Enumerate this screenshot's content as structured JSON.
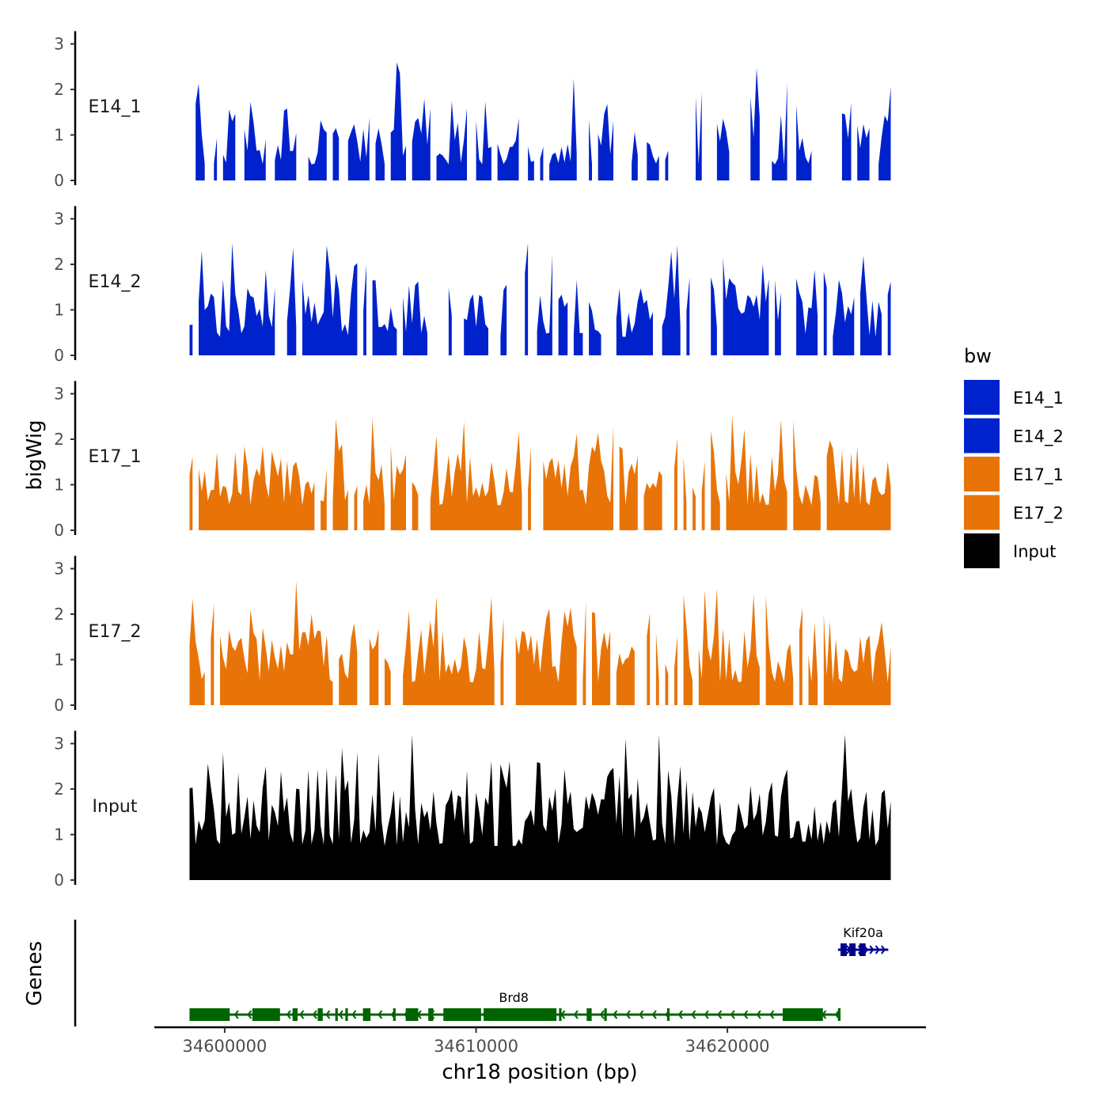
{
  "chart_data": {
    "type": "area",
    "ylabel": "bigWig",
    "genes_label": "Genes",
    "xlabel": "chr18 position (bp)",
    "x_ticks": [
      34600000,
      34610000,
      34620000
    ],
    "x_tick_labels": [
      "34600000",
      "34610000",
      "34620000"
    ],
    "xlim": [
      34597200,
      34627900
    ],
    "data_range": [
      34598600,
      34626500
    ],
    "ylim": [
      0,
      3.35
    ],
    "y_ticks": [
      0,
      1,
      2,
      3
    ],
    "y_tick_labels": [
      "0",
      "1",
      "2",
      "3"
    ],
    "legend": {
      "title": "bw",
      "entries": [
        {
          "label": "E14_1",
          "color": "#0022CC"
        },
        {
          "label": "E14_2",
          "color": "#0022CC"
        },
        {
          "label": "E17_1",
          "color": "#E87408"
        },
        {
          "label": "E17_2",
          "color": "#E87408"
        },
        {
          "label": "Input",
          "color": "#000000"
        }
      ]
    },
    "series": [
      {
        "name": "E14_1",
        "color": "#0022CC",
        "seed": 11,
        "base": 0.35,
        "amp": 1.05,
        "peak_prob": 0.28,
        "peak_height": 0.6,
        "gap_prob": 0.22,
        "floor": 0.0
      },
      {
        "name": "E14_2",
        "color": "#0022CC",
        "seed": 23,
        "base": 0.4,
        "amp": 1.1,
        "peak_prob": 0.3,
        "peak_height": 0.8,
        "gap_prob": 0.2,
        "floor": 0.0
      },
      {
        "name": "E17_1",
        "color": "#E87408",
        "seed": 37,
        "base": 0.55,
        "amp": 1.0,
        "peak_prob": 0.3,
        "peak_height": 0.7,
        "gap_prob": 0.08,
        "floor": 0.0
      },
      {
        "name": "E17_2",
        "color": "#E87408",
        "seed": 51,
        "base": 0.5,
        "amp": 1.05,
        "peak_prob": 0.3,
        "peak_height": 1.0,
        "gap_prob": 0.1,
        "floor": 0.0
      },
      {
        "name": "Input",
        "color": "#000000",
        "seed": 73,
        "base": 0.75,
        "amp": 1.1,
        "peak_prob": 0.3,
        "peak_height": 1.2,
        "gap_prob": 0.0,
        "floor": 0.4
      }
    ],
    "genes": [
      {
        "name": "Brd8",
        "color": "#006400",
        "strand": "-",
        "start": 34598600,
        "end": 34624500,
        "label_at": 34611500,
        "exons": [
          [
            34598600,
            34600200
          ],
          [
            34601100,
            34602200
          ],
          [
            34602700,
            34602900
          ],
          [
            34603700,
            34603900
          ],
          [
            34604400,
            34604500
          ],
          [
            34604800,
            34604900
          ],
          [
            34605500,
            34605800
          ],
          [
            34606700,
            34606800
          ],
          [
            34607200,
            34607700
          ],
          [
            34608100,
            34608300
          ],
          [
            34608700,
            34610200
          ],
          [
            34610300,
            34613200
          ],
          [
            34613300,
            34613400
          ],
          [
            34614400,
            34614600
          ],
          [
            34615100,
            34615200
          ],
          [
            34617600,
            34617700
          ],
          [
            34622200,
            34623800
          ],
          [
            34624400,
            34624500
          ]
        ]
      },
      {
        "name": "Kif20a",
        "color": "#00008B",
        "strand": "+",
        "start": 34624400,
        "end": 34626400,
        "label_at": 34625400,
        "exons": [
          [
            34624500,
            34624750
          ],
          [
            34624850,
            34625100
          ],
          [
            34625250,
            34625500
          ]
        ]
      }
    ]
  }
}
